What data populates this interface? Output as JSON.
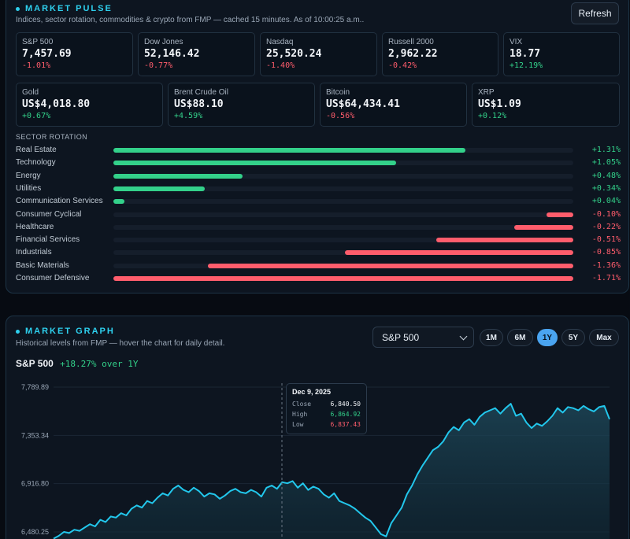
{
  "pulse": {
    "title": "MARKET PULSE",
    "subtitle": "Indices, sector rotation, commodities & crypto from FMP — cached 15 minutes. As of 10:00:25 a.m..",
    "refresh_label": "Refresh",
    "indices": [
      {
        "name": "S&P 500",
        "value": "7,457.69",
        "change": "-1.01%",
        "dir": "neg"
      },
      {
        "name": "Dow Jones",
        "value": "52,146.42",
        "change": "-0.77%",
        "dir": "neg"
      },
      {
        "name": "Nasdaq",
        "value": "25,520.24",
        "change": "-1.40%",
        "dir": "neg"
      },
      {
        "name": "Russell 2000",
        "value": "2,962.22",
        "change": "-0.42%",
        "dir": "neg"
      },
      {
        "name": "VIX",
        "value": "18.77",
        "change": "+12.19%",
        "dir": "pos"
      }
    ],
    "assets": [
      {
        "name": "Gold",
        "value": "US$4,018.80",
        "change": "+0.67%",
        "dir": "pos"
      },
      {
        "name": "Brent Crude Oil",
        "value": "US$88.10",
        "change": "+4.59%",
        "dir": "pos"
      },
      {
        "name": "Bitcoin",
        "value": "US$64,434.41",
        "change": "-0.56%",
        "dir": "neg"
      },
      {
        "name": "XRP",
        "value": "US$1.09",
        "change": "+0.12%",
        "dir": "pos"
      }
    ],
    "sector_label": "SECTOR ROTATION",
    "sectors": [
      {
        "name": "Real Estate",
        "change": "+1.31%",
        "pct": 1.31
      },
      {
        "name": "Technology",
        "change": "+1.05%",
        "pct": 1.05
      },
      {
        "name": "Energy",
        "change": "+0.48%",
        "pct": 0.48
      },
      {
        "name": "Utilities",
        "change": "+0.34%",
        "pct": 0.34
      },
      {
        "name": "Communication Services",
        "change": "+0.04%",
        "pct": 0.04
      },
      {
        "name": "Consumer Cyclical",
        "change": "-0.10%",
        "pct": -0.1
      },
      {
        "name": "Healthcare",
        "change": "-0.22%",
        "pct": -0.22
      },
      {
        "name": "Financial Services",
        "change": "-0.51%",
        "pct": -0.51
      },
      {
        "name": "Industrials",
        "change": "-0.85%",
        "pct": -0.85
      },
      {
        "name": "Basic Materials",
        "change": "-1.36%",
        "pct": -1.36
      },
      {
        "name": "Consumer Defensive",
        "change": "-1.71%",
        "pct": -1.71
      }
    ]
  },
  "graph": {
    "title": "MARKET GRAPH",
    "subtitle": "Historical levels from FMP — hover the chart for daily detail.",
    "select_value": "S&P 500",
    "ranges": [
      "1M",
      "6M",
      "1Y",
      "5Y",
      "Max"
    ],
    "active_range": "1Y",
    "symbol": "S&P 500",
    "change_text": "+18.27% over 1Y",
    "tooltip": {
      "date": "Dec 9, 2025",
      "close_label": "Close",
      "close": "6,840.50",
      "high_label": "High",
      "high": "6,864.92",
      "low_label": "Low",
      "low": "6,837.43"
    }
  },
  "colors": {
    "accent": "#2ed0ee",
    "positive": "#33d18a",
    "negative": "#ff5d6c",
    "line": "#22c7ec",
    "active_range": "#4aa4f0"
  },
  "chart_data": {
    "type": "area",
    "title": "",
    "xlabel": "",
    "ylabel": "",
    "yticks": [
      "7,789.89",
      "7,353.34",
      "6,916.80",
      "6,480.25"
    ],
    "ytick_values": [
      7789.89,
      7353.34,
      6916.8,
      6480.25
    ],
    "ylim": [
      6350,
      7850
    ],
    "grid": true,
    "series": [
      {
        "values": [
          6420,
          6445,
          6480,
          6470,
          6500,
          6490,
          6520,
          6550,
          6530,
          6590,
          6570,
          6620,
          6610,
          6650,
          6630,
          6690,
          6720,
          6700,
          6760,
          6740,
          6790,
          6830,
          6810,
          6870,
          6900,
          6860,
          6840,
          6880,
          6850,
          6800,
          6830,
          6820,
          6780,
          6810,
          6850,
          6870,
          6840,
          6830,
          6860,
          6840,
          6800,
          6880,
          6900,
          6870,
          6930,
          6920,
          6940,
          6880,
          6920,
          6860,
          6890,
          6870,
          6820,
          6790,
          6830,
          6760,
          6740,
          6720,
          6690,
          6650,
          6610,
          6580,
          6520,
          6460,
          6440,
          6560,
          6630,
          6700,
          6820,
          6900,
          7000,
          7080,
          7150,
          7220,
          7250,
          7300,
          7380,
          7430,
          7400,
          7470,
          7500,
          7450,
          7520,
          7560,
          7580,
          7600,
          7550,
          7600,
          7640,
          7530,
          7550,
          7470,
          7420,
          7460,
          7440,
          7480,
          7530,
          7600,
          7560,
          7610,
          7600,
          7580,
          7620,
          7590,
          7570,
          7610,
          7620,
          7500
        ]
      }
    ]
  }
}
